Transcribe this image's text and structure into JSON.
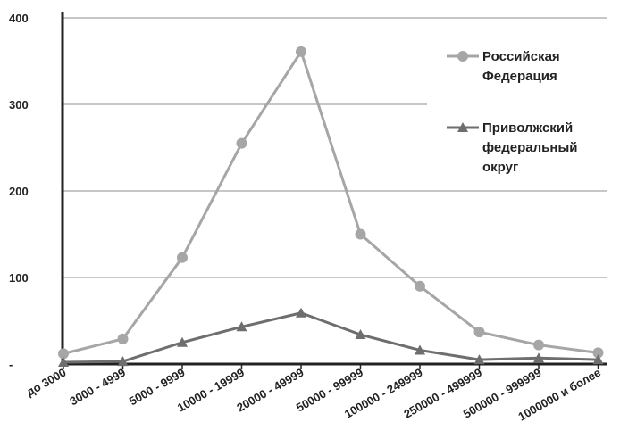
{
  "chart_data": {
    "type": "line",
    "title": "",
    "xlabel": "",
    "ylabel": "",
    "categories": [
      "до 3000",
      "3000 - 4999",
      "5000 - 9999",
      "10000 - 19999",
      "20000 - 49999",
      "50000 - 99999",
      "100000 - 249999",
      "250000 - 499999",
      "500000 - 999999",
      "1000000 и более"
    ],
    "ylim": [
      0,
      400
    ],
    "yticks": [
      0,
      100,
      200,
      300,
      400
    ],
    "ytick_labels": [
      "-",
      "100",
      "200",
      "300",
      "400"
    ],
    "grid": true,
    "legend_position": "right",
    "series": [
      {
        "name": "Российская Федерация",
        "legend_lines": [
          "Российская",
          "Федерация"
        ],
        "marker": "circle",
        "color": "#a6a6a6",
        "values": [
          12,
          29,
          123,
          255,
          361,
          150,
          90,
          37,
          22,
          13
        ]
      },
      {
        "name": "Приволжский федеральный округ",
        "legend_lines": [
          "Приволжский",
          "федеральный",
          "округ"
        ],
        "marker": "triangle",
        "color": "#6e6e6e",
        "values": [
          2,
          3,
          25,
          43,
          59,
          34,
          16,
          5,
          7,
          5
        ]
      }
    ]
  }
}
